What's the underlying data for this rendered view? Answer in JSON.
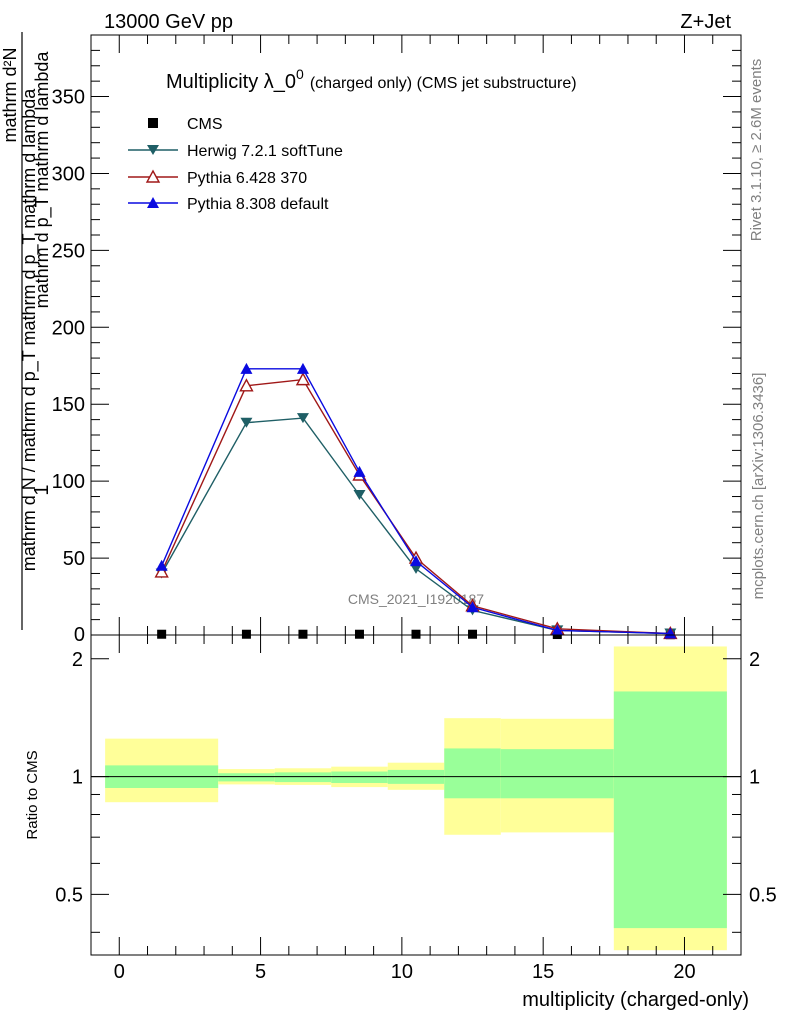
{
  "header": {
    "left": "13000 GeV pp",
    "right": "Z+Jet"
  },
  "side_text": {
    "rivet": "Rivet 3.1.10, ≥ 2.6M events",
    "mcplots": "mcplots.cern.ch [arXiv:1306.3436]"
  },
  "watermark": "CMS_2021_I1920187",
  "colors": {
    "cms": "#000000",
    "herwig": "#1f5f66",
    "pythia6": "#a01818",
    "pythia8": "#0a0ae0",
    "band_outer": "#ffff99",
    "band_inner": "#99ff99"
  },
  "chart_data": [
    {
      "type": "line",
      "title": "Multiplicity λ_0",
      "title_sup": "0",
      "title_suffix": "(charged only) (CMS jet substructure)",
      "ylabel": {
        "numerator": "1",
        "denominator": "mathrm d N / mathrm d p_T mathrm d p_T mathrm d lambda",
        "deriv_num": "mathrm d²N",
        "deriv_den": "mathrm d p_T mathrm d lambda"
      },
      "x": [
        1.5,
        4.5,
        6.5,
        8.5,
        10.5,
        12.5,
        15.5,
        19.5
      ],
      "xlim": [
        -1,
        22
      ],
      "ylim": [
        0,
        390
      ],
      "yticks": [
        50,
        100,
        150,
        200,
        250,
        300,
        350
      ],
      "series": [
        {
          "name": "CMS",
          "marker": "square",
          "values": [
            0.5,
            0.5,
            0.5,
            0.5,
            0.5,
            0.5,
            0.3,
            0.2
          ]
        },
        {
          "name": "Herwig 7.2.1 softTune",
          "marker": "triangle-down",
          "values": [
            40,
            138,
            141,
            91,
            43,
            16,
            3,
            1
          ]
        },
        {
          "name": "Pythia 6.428 370",
          "marker": "triangle-up-open",
          "values": [
            41,
            162,
            166,
            104,
            50,
            19,
            4,
            1
          ]
        },
        {
          "name": "Pythia 8.308 default",
          "marker": "triangle-up",
          "values": [
            45,
            173,
            173,
            106,
            48,
            18,
            3,
            1
          ]
        }
      ]
    },
    {
      "type": "area",
      "ylabel": "Ratio to CMS",
      "xlabel": "multiplicity (charged-only)",
      "xlim": [
        -1,
        22
      ],
      "ylim_log": [
        0.35,
        2.3
      ],
      "yticks": [
        0.5,
        1,
        2
      ],
      "xticks": [
        0,
        5,
        10,
        15,
        20
      ],
      "bins": [
        {
          "lo": -0.5,
          "hi": 3.5,
          "inner": [
            0.935,
            1.068
          ],
          "outer": [
            0.86,
            1.25
          ]
        },
        {
          "lo": 3.5,
          "hi": 5.5,
          "inner": [
            0.972,
            1.02
          ],
          "outer": [
            0.955,
            1.045
          ]
        },
        {
          "lo": 5.5,
          "hi": 7.5,
          "inner": [
            0.968,
            1.025
          ],
          "outer": [
            0.952,
            1.05
          ]
        },
        {
          "lo": 7.5,
          "hi": 9.5,
          "inner": [
            0.963,
            1.03
          ],
          "outer": [
            0.94,
            1.06
          ]
        },
        {
          "lo": 9.5,
          "hi": 11.5,
          "inner": [
            0.958,
            1.04
          ],
          "outer": [
            0.925,
            1.085
          ]
        },
        {
          "lo": 11.5,
          "hi": 13.5,
          "inner": [
            0.88,
            1.18
          ],
          "outer": [
            0.71,
            1.41
          ]
        },
        {
          "lo": 13.5,
          "hi": 17.5,
          "inner": [
            0.88,
            1.175
          ],
          "outer": [
            0.72,
            1.405
          ]
        },
        {
          "lo": 17.5,
          "hi": 21.5,
          "inner": [
            0.41,
            1.65
          ],
          "outer": [
            0.36,
            2.15
          ]
        }
      ]
    }
  ]
}
